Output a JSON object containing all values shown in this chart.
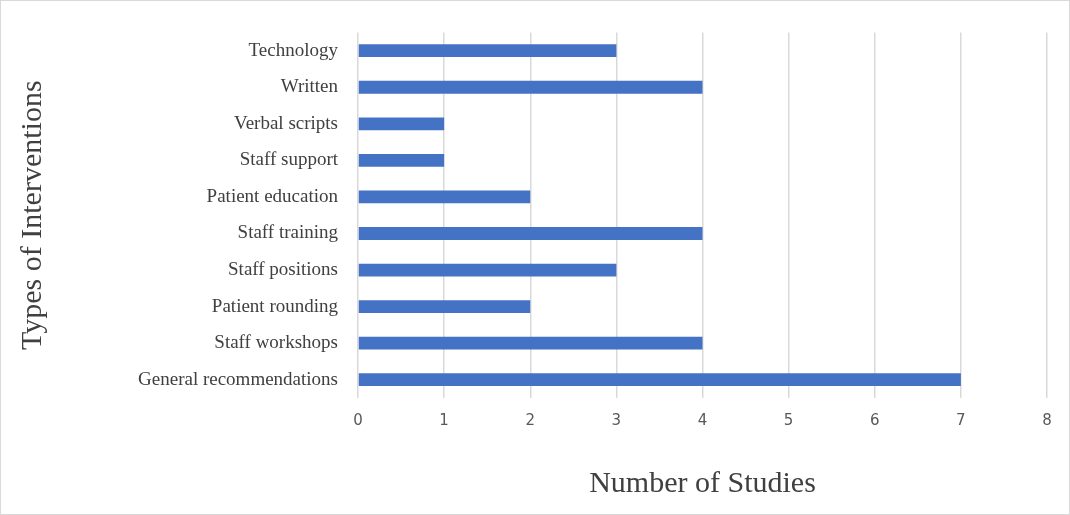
{
  "chart_data": {
    "type": "bar",
    "orientation": "horizontal",
    "xlabel": "Number of Studies",
    "ylabel": "Types of Interventions",
    "categories": [
      "Technology",
      "Written",
      "Verbal scripts",
      "Staff support",
      "Patient education",
      "Staff training",
      "Staff positions",
      "Patient rounding",
      "Staff workshops",
      "General recommendations"
    ],
    "values": [
      3,
      4,
      1,
      1,
      2,
      4,
      3,
      2,
      4,
      7
    ],
    "color": "#4472c4",
    "xlim": [
      0,
      8
    ],
    "xticks": [
      0,
      1,
      2,
      3,
      4,
      5,
      6,
      7,
      8
    ],
    "grid": "x",
    "legend": false
  }
}
